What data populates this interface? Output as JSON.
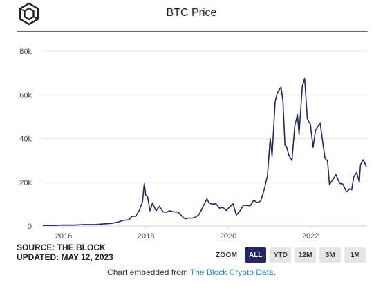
{
  "header": {
    "title": "BTC Price",
    "logo_icon": "cube-icon"
  },
  "source": {
    "line1": "SOURCE: THE BLOCK",
    "line2": "UPDATED: MAY 12, 2023"
  },
  "zoom": {
    "label": "ZOOM",
    "buttons": [
      "ALL",
      "YTD",
      "12M",
      "3M",
      "1M"
    ],
    "active": "ALL"
  },
  "footer": {
    "prefix": "Chart embedded from ",
    "link": "The Block Crypto Data",
    "suffix": "."
  },
  "colors": {
    "line": "#24285f",
    "accent": "#7b4f8f",
    "grid": "#e6e6e6",
    "link": "#2a8cc7"
  },
  "chart_data": {
    "type": "line",
    "title": "BTC Price",
    "xlabel": "",
    "ylabel": "",
    "x_ticks": [
      "2016",
      "2018",
      "2020",
      "2022"
    ],
    "y_ticks": [
      "0",
      "20k",
      "40k",
      "60k",
      "80k"
    ],
    "ylim": [
      0,
      80000
    ],
    "xlim": [
      "2015-07-01",
      "2023-05-12"
    ],
    "grid": true,
    "series": [
      {
        "x": [
          "2015-07-01",
          "2015-10-01",
          "2016-01-01",
          "2016-04-01",
          "2016-07-01",
          "2016-10-01",
          "2017-01-01",
          "2017-03-01",
          "2017-05-01",
          "2017-06-15",
          "2017-08-01",
          "2017-09-01",
          "2017-10-01",
          "2017-11-01",
          "2017-12-01",
          "2017-12-17",
          "2017-12-31",
          "2018-01-15",
          "2018-02-06",
          "2018-03-01",
          "2018-04-01",
          "2018-05-01",
          "2018-06-01",
          "2018-07-01",
          "2018-08-01",
          "2018-09-01",
          "2018-10-15",
          "2018-11-20",
          "2018-12-15",
          "2019-01-15",
          "2019-02-15",
          "2019-03-15",
          "2019-04-15",
          "2019-05-15",
          "2019-06-26",
          "2019-07-15",
          "2019-08-15",
          "2019-09-15",
          "2019-10-15",
          "2019-11-15",
          "2019-12-15",
          "2020-01-15",
          "2020-02-13",
          "2020-03-13",
          "2020-04-15",
          "2020-05-15",
          "2020-06-15",
          "2020-07-15",
          "2020-08-15",
          "2020-09-15",
          "2020-10-15",
          "2020-11-15",
          "2020-12-15",
          "2021-01-08",
          "2021-01-25",
          "2021-02-21",
          "2021-03-13",
          "2021-04-14",
          "2021-05-01",
          "2021-05-19",
          "2021-06-01",
          "2021-06-22",
          "2021-07-20",
          "2021-08-15",
          "2021-09-07",
          "2021-09-21",
          "2021-10-20",
          "2021-11-10",
          "2021-12-04",
          "2021-12-31",
          "2022-01-24",
          "2022-02-15",
          "2022-03-28",
          "2022-04-15",
          "2022-05-10",
          "2022-06-01",
          "2022-06-18",
          "2022-07-15",
          "2022-08-15",
          "2022-09-15",
          "2022-10-15",
          "2022-11-08",
          "2022-11-21",
          "2022-12-15",
          "2023-01-01",
          "2023-01-20",
          "2023-02-15",
          "2023-03-10",
          "2023-03-20",
          "2023-04-14",
          "2023-05-01",
          "2023-05-12"
        ],
        "values": [
          280,
          250,
          430,
          420,
          670,
          610,
          1000,
          1200,
          1800,
          2600,
          2800,
          4500,
          4400,
          7000,
          11000,
          19500,
          14000,
          13500,
          7000,
          10500,
          7000,
          9000,
          6500,
          6300,
          7000,
          6500,
          6400,
          4300,
          3300,
          3600,
          3600,
          4000,
          5100,
          8000,
          12500,
          10500,
          10000,
          10200,
          8200,
          8500,
          7100,
          8800,
          10200,
          5000,
          7000,
          9500,
          9400,
          9300,
          11800,
          10700,
          11400,
          16500,
          23000,
          40000,
          32000,
          57000,
          61000,
          63500,
          57000,
          37000,
          36500,
          32500,
          30000,
          46000,
          51000,
          42000,
          64000,
          67500,
          49000,
          46500,
          36000,
          44000,
          47000,
          40000,
          31000,
          29800,
          19000,
          21000,
          23500,
          19500,
          19200,
          16500,
          15700,
          17000,
          16600,
          22500,
          24500,
          20000,
          28000,
          30400,
          28500,
          27000
        ]
      }
    ]
  }
}
